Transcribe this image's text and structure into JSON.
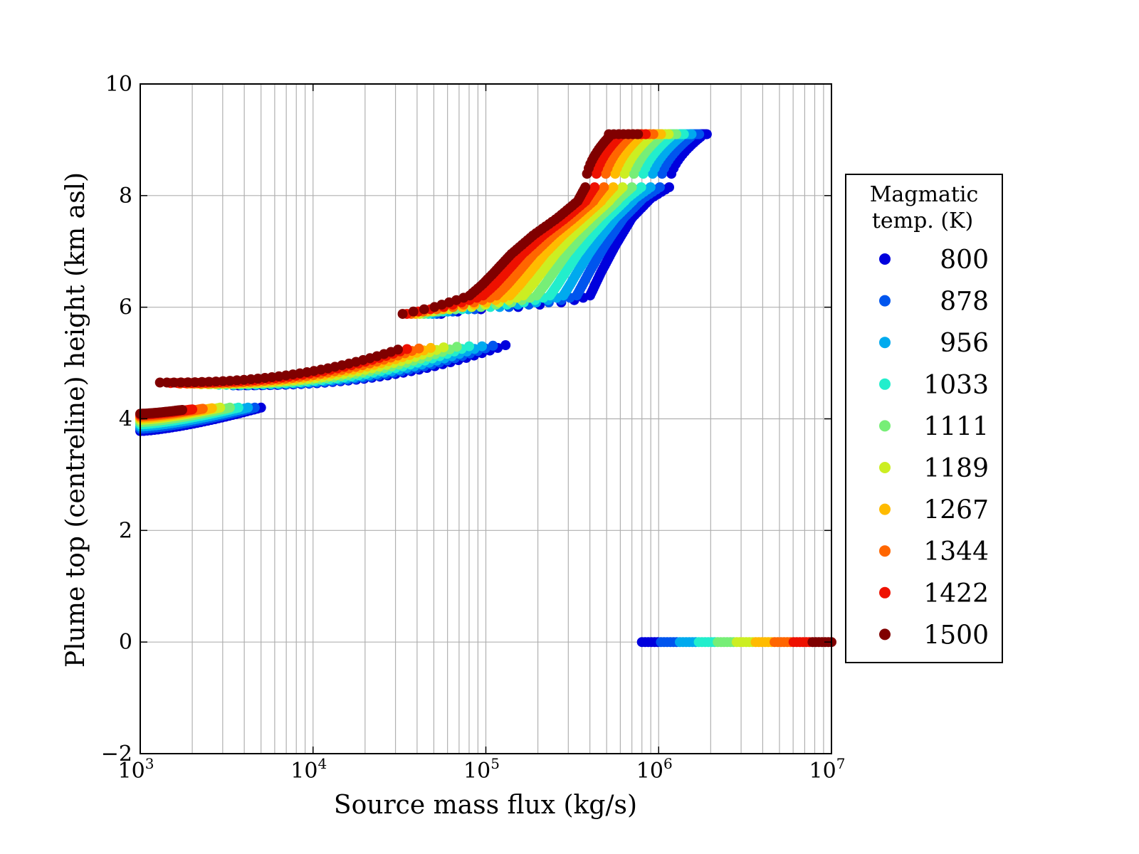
{
  "chart_data": {
    "type": "scatter",
    "title": "",
    "xlabel": "Source mass flux (kg/s)",
    "ylabel": "Plume top (centreline) height (km asl)",
    "xscale": "log",
    "xlim": [
      1000,
      10000000
    ],
    "ylim": [
      -2,
      10
    ],
    "x_ticks": [
      {
        "value": 1000,
        "base": "10",
        "exp": "3"
      },
      {
        "value": 10000,
        "base": "10",
        "exp": "4"
      },
      {
        "value": 100000,
        "base": "10",
        "exp": "5"
      },
      {
        "value": 1000000,
        "base": "10",
        "exp": "6"
      },
      {
        "value": 10000000,
        "base": "10",
        "exp": "7"
      }
    ],
    "y_ticks": [
      {
        "value": -2,
        "label": "−2"
      },
      {
        "value": 0,
        "label": "0"
      },
      {
        "value": 2,
        "label": "2"
      },
      {
        "value": 4,
        "label": "4"
      },
      {
        "value": 6,
        "label": "6"
      },
      {
        "value": 8,
        "label": "8"
      },
      {
        "value": 10,
        "label": "10"
      }
    ],
    "grid": true,
    "legend": {
      "title_lines": [
        "Magmatic",
        "temp. (K)"
      ],
      "position": "right-outside"
    },
    "series": [
      {
        "name": "800",
        "color": "#0000dd"
      },
      {
        "name": "878",
        "color": "#0055ee"
      },
      {
        "name": "956",
        "color": "#00aaee"
      },
      {
        "name": "1033",
        "color": "#22eecc"
      },
      {
        "name": "1111",
        "color": "#77ee77"
      },
      {
        "name": "1189",
        "color": "#ccee22"
      },
      {
        "name": "1267",
        "color": "#ffbb00"
      },
      {
        "name": "1344",
        "color": "#ff6600"
      },
      {
        "name": "1422",
        "color": "#ee1100"
      },
      {
        "name": "1500",
        "color": "#800000"
      }
    ],
    "branches": [
      {
        "x_start": [
          1000,
          1000,
          1000,
          1000,
          1000,
          1000,
          1000,
          1000,
          1000,
          1000
        ],
        "x_end": [
          5000,
          4600,
          4200,
          3700,
          3300,
          2900,
          2600,
          2300,
          2000,
          1750
        ],
        "y_start": [
          3.78,
          3.82,
          3.86,
          3.9,
          3.94,
          3.98,
          4.01,
          4.04,
          4.07,
          4.09
        ],
        "y_end": [
          4.2,
          4.2,
          4.2,
          4.2,
          4.2,
          4.2,
          4.19,
          4.18,
          4.17,
          4.16
        ],
        "curve": 1.4
      },
      {
        "x_start": [
          3700,
          3450,
          3150,
          2850,
          2550,
          2250,
          1950,
          1700,
          1500,
          1300
        ],
        "x_end": [
          130000,
          110000,
          95000,
          80000,
          68000,
          57000,
          48000,
          41000,
          35000,
          31000
        ],
        "y_start": [
          4.6,
          4.6,
          4.61,
          4.61,
          4.62,
          4.62,
          4.63,
          4.63,
          4.64,
          4.65
        ],
        "y_end": [
          5.32,
          5.31,
          5.3,
          5.3,
          5.29,
          5.28,
          5.27,
          5.26,
          5.25,
          5.24
        ],
        "curve": 2.4
      }
    ],
    "curve_points": [
      {
        "name": "800",
        "x": [
          47000,
          80000,
          150000,
          300000,
          400000,
          460000,
          560000,
          700000,
          900000,
          1150000
        ],
        "y": [
          5.85,
          5.95,
          6.0,
          6.1,
          6.2,
          6.6,
          7.1,
          7.6,
          7.95,
          8.15
        ]
      },
      {
        "name": "1500",
        "x": [
          33000,
          50000,
          80000,
          95000,
          110000,
          140000,
          190000,
          260000,
          340000,
          400000,
          450000,
          520000,
          600000
        ],
        "y": [
          5.88,
          6.0,
          6.2,
          6.4,
          6.6,
          6.95,
          7.3,
          7.6,
          7.9,
          8.3,
          8.75,
          9.0,
          9.1
        ]
      }
    ],
    "zero_line": {
      "y": 0,
      "x_start": 800000,
      "x_end": 10000000
    },
    "plateau_y": 9.1
  }
}
